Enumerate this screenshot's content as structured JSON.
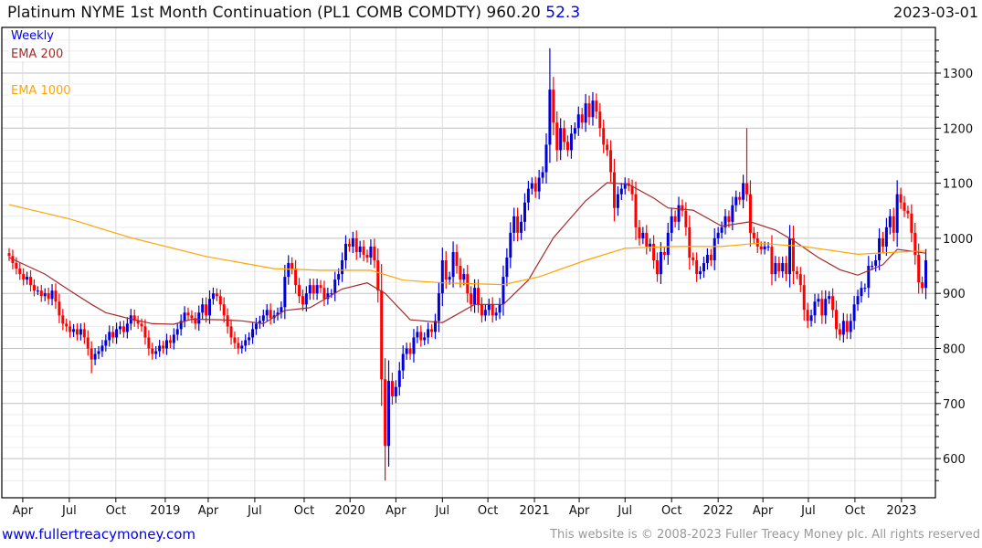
{
  "header": {
    "title": "Platinum NYME 1st Month Continuation (PL1 COMB COMDTY) 960.20",
    "change": "52.3",
    "date": "2023-03-01"
  },
  "legend": {
    "period": "Weekly",
    "ema_short": "EMA 200",
    "ema_long": "EMA 1000"
  },
  "footer": {
    "link": "www.fullertreacymoney.com",
    "copyright": "This website is © 2008-2023 Fuller Treacy Money plc. All rights reserved"
  },
  "colors": {
    "up": "#0000dd",
    "down": "#ff0000",
    "ema_short": "#a52a2a",
    "ema_long": "#ffa500"
  },
  "chart_data": {
    "type": "candlestick",
    "title": "Platinum NYME 1st Month Continuation (PL1 COMB COMDTY)",
    "ylim": [
      540,
      1370
    ],
    "y_ticks": [
      600,
      700,
      800,
      900,
      1000,
      1100,
      1200,
      1300
    ],
    "x_ticks": [
      [
        "Apr",
        3.8
      ],
      [
        "Jul",
        16.8
      ],
      [
        "Oct",
        29.8
      ],
      [
        "2019",
        43.6
      ],
      [
        "Apr",
        55.6
      ],
      [
        "Jul",
        68.6
      ],
      [
        "Oct",
        82.4
      ],
      [
        "2020",
        95.2
      ],
      [
        "Apr",
        108
      ],
      [
        "Jul",
        121
      ],
      [
        "Oct",
        133.7
      ],
      [
        "2021",
        146.7
      ],
      [
        "Apr",
        159.2
      ],
      [
        "Jul",
        172
      ],
      [
        "Oct",
        185
      ],
      [
        "2022",
        198
      ],
      [
        "Apr",
        210.5
      ],
      [
        "Jul",
        223.2
      ],
      [
        "Oct",
        236.2
      ],
      [
        "2023",
        249.2
      ]
    ],
    "weekly_close": [
      968,
      955,
      945,
      935,
      925,
      930,
      915,
      905,
      905,
      895,
      900,
      890,
      905,
      885,
      860,
      845,
      840,
      830,
      835,
      825,
      835,
      820,
      800,
      780,
      790,
      795,
      805,
      815,
      830,
      820,
      835,
      840,
      830,
      845,
      860,
      850,
      845,
      840,
      820,
      800,
      790,
      795,
      805,
      800,
      815,
      810,
      825,
      835,
      850,
      865,
      860,
      855,
      845,
      865,
      880,
      860,
      890,
      900,
      895,
      880,
      860,
      840,
      820,
      810,
      800,
      805,
      815,
      820,
      835,
      845,
      850,
      860,
      870,
      855,
      860,
      865,
      875,
      930,
      955,
      945,
      915,
      895,
      880,
      900,
      915,
      900,
      915,
      910,
      890,
      900,
      900,
      925,
      935,
      960,
      990,
      985,
      1000,
      975,
      985,
      970,
      965,
      985,
      960,
      905,
      744,
      623,
      741,
      713,
      730,
      760,
      790,
      800,
      790,
      820,
      830,
      815,
      820,
      835,
      830,
      850,
      900,
      960,
      925,
      930,
      975,
      950,
      925,
      935,
      900,
      880,
      910,
      880,
      860,
      870,
      880,
      860,
      865,
      880,
      930,
      965,
      1010,
      1040,
      1010,
      1030,
      1065,
      1090,
      1100,
      1085,
      1110,
      1120,
      1170,
      1270,
      1210,
      1160,
      1200,
      1175,
      1160,
      1190,
      1200,
      1225,
      1210,
      1245,
      1220,
      1250,
      1230,
      1200,
      1170,
      1160,
      1120,
      1055,
      1080,
      1090,
      1100,
      1095,
      1080,
      1020,
      1000,
      1010,
      985,
      990,
      960,
      935,
      975,
      970,
      1010,
      1040,
      1030,
      1060,
      1050,
      1020,
      965,
      960,
      935,
      940,
      955,
      970,
      960,
      1000,
      1010,
      1020,
      1040,
      1030,
      1060,
      1075,
      1070,
      1100,
      1080,
      1010,
      1000,
      985,
      980,
      985,
      985,
      935,
      955,
      940,
      955,
      935,
      1000,
      940,
      935,
      915,
      870,
      850,
      860,
      885,
      890,
      860,
      890,
      895,
      870,
      835,
      825,
      850,
      830,
      850,
      880,
      895,
      910,
      910,
      950,
      950,
      960,
      1000,
      985,
      1020,
      1040,
      1010,
      1080,
      1065,
      1050,
      1045,
      1010,
      970,
      920,
      910,
      960
    ],
    "notable_extremes": [
      [
        23,
        null,
        755
      ],
      [
        105,
        null,
        560
      ],
      [
        151,
        1345,
        null
      ],
      [
        206,
        1200,
        null
      ]
    ],
    "series": [
      {
        "name": "EMA 200",
        "points": [
          [
            0,
            965
          ],
          [
            10,
            935
          ],
          [
            17,
            905
          ],
          [
            23,
            880
          ],
          [
            27,
            865
          ],
          [
            33,
            855
          ],
          [
            40,
            845
          ],
          [
            46,
            844
          ],
          [
            51,
            853
          ],
          [
            59,
            852
          ],
          [
            65,
            850
          ],
          [
            71,
            845
          ],
          [
            77,
            869
          ],
          [
            84,
            874
          ],
          [
            93,
            908
          ],
          [
            100,
            919
          ],
          [
            105,
            900
          ],
          [
            112,
            852
          ],
          [
            121,
            847
          ],
          [
            130,
            880
          ],
          [
            138,
            880
          ],
          [
            145,
            924
          ],
          [
            152,
            1001
          ],
          [
            161,
            1068
          ],
          [
            167,
            1101
          ],
          [
            173,
            1098
          ],
          [
            180,
            1073
          ],
          [
            184,
            1055
          ],
          [
            191,
            1051
          ],
          [
            199,
            1022
          ],
          [
            207,
            1030
          ],
          [
            214,
            1015
          ],
          [
            219,
            996
          ],
          [
            226,
            965
          ],
          [
            232,
            943
          ],
          [
            237,
            933
          ],
          [
            244,
            952
          ],
          [
            248,
            980
          ],
          [
            256,
            973
          ]
        ]
      },
      {
        "name": "EMA 1000",
        "points": [
          [
            0,
            1061
          ],
          [
            17,
            1035
          ],
          [
            34,
            1001
          ],
          [
            55,
            967
          ],
          [
            74,
            945
          ],
          [
            87,
            942
          ],
          [
            101,
            942
          ],
          [
            110,
            924
          ],
          [
            121,
            919
          ],
          [
            138,
            916
          ],
          [
            148,
            930
          ],
          [
            161,
            960
          ],
          [
            172,
            982
          ],
          [
            186,
            985
          ],
          [
            199,
            985
          ],
          [
            209,
            991
          ],
          [
            222,
            985
          ],
          [
            237,
            971
          ],
          [
            248,
            975
          ],
          [
            256,
            977
          ]
        ]
      }
    ]
  }
}
